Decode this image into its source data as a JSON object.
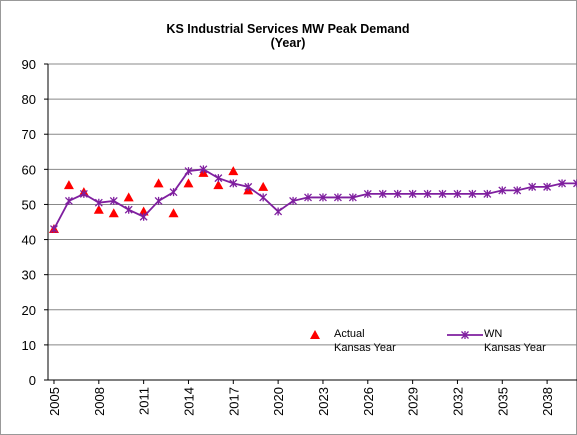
{
  "chart_data": {
    "type": "line",
    "title": "KS Industrial Services MW Peak Demand",
    "subtitle": "(Year)",
    "xlim": [
      2004.6,
      2040
    ],
    "xticks": [
      2005,
      2008,
      2011,
      2014,
      2017,
      2020,
      2023,
      2026,
      2029,
      2032,
      2035,
      2038
    ],
    "ylim": [
      0,
      90
    ],
    "yticks": [
      0,
      10,
      20,
      30,
      40,
      50,
      60,
      70,
      80,
      90
    ],
    "grid": true,
    "series": [
      {
        "name": "Actual Kansas Year",
        "color": "#ff0000",
        "marker": "triangle",
        "x": [
          2005,
          2006,
          2007,
          2008,
          2009,
          2010,
          2011,
          2012,
          2013,
          2014,
          2015,
          2016,
          2017,
          2018,
          2019
        ],
        "values": [
          43,
          55.5,
          53.5,
          48.5,
          47.5,
          52,
          48,
          56,
          47.5,
          56,
          59,
          55.5,
          59.5,
          54,
          55
        ]
      },
      {
        "name": "WN Kansas Year",
        "color": "#7f1f9f",
        "marker": "star",
        "x": [
          2005,
          2006,
          2007,
          2008,
          2009,
          2010,
          2011,
          2012,
          2013,
          2014,
          2015,
          2016,
          2017,
          2018,
          2019,
          2020,
          2021,
          2022,
          2023,
          2024,
          2025,
          2026,
          2027,
          2028,
          2029,
          2030,
          2031,
          2032,
          2033,
          2034,
          2035,
          2036,
          2037,
          2038,
          2039,
          2040
        ],
        "values": [
          43,
          51,
          53,
          50.5,
          51,
          48.5,
          46.5,
          51,
          53.5,
          59.5,
          60,
          57.5,
          56,
          55,
          52,
          48,
          51,
          52,
          52,
          52,
          52,
          53,
          53,
          53,
          53,
          53,
          53,
          53,
          53,
          53,
          54,
          54,
          55,
          55,
          56,
          56
        ]
      }
    ]
  }
}
